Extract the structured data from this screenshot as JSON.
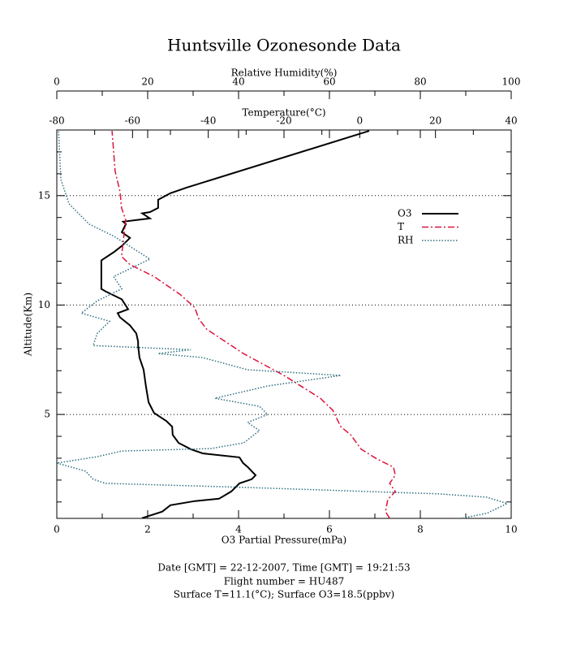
{
  "chart_data": {
    "type": "line",
    "title": "Huntsville Ozonesonde Data",
    "xlabel": "O3 Partial Pressure(mPa)",
    "x2label": "Temperature(°C)",
    "x3label": "Relative Humidity(%)",
    "ylabel": "Altitude(Km)",
    "xlim": [
      0,
      10
    ],
    "xticks": [
      0,
      2,
      4,
      6,
      8,
      10
    ],
    "xminorticks": [
      1,
      3,
      5,
      7,
      9
    ],
    "x2lim": [
      -80,
      40
    ],
    "x2ticks": [
      -80,
      -60,
      -40,
      -20,
      0,
      20,
      40
    ],
    "x2minorticks": [
      -70,
      -50,
      -30,
      -10,
      10,
      30
    ],
    "x3lim": [
      0,
      100
    ],
    "x3ticks": [
      0,
      20,
      40,
      60,
      80,
      100
    ],
    "x3minorticks": [
      10,
      30,
      50,
      70,
      90
    ],
    "ylim": [
      0.25,
      18
    ],
    "yticks": [
      5,
      10,
      15
    ],
    "yminorticks": [
      1,
      2,
      3,
      4,
      6,
      7,
      8,
      9,
      11,
      12,
      13,
      14,
      16,
      17
    ],
    "grid": true,
    "legend": "upper right",
    "series": [
      {
        "name": "O3",
        "color": "#000000",
        "style": "solid",
        "axis": "x",
        "values": [
          1.875,
          2.32,
          2.5,
          3.04,
          3.57,
          3.84,
          4.02,
          4.29,
          4.375,
          4.2,
          4.1,
          4.02,
          3.21,
          2.95,
          2.68,
          2.55,
          2.54,
          2.41,
          2.14,
          2.02,
          1.96,
          1.91,
          1.82,
          1.79,
          1.79,
          1.75,
          1.61,
          1.39,
          1.34,
          1.57,
          1.43,
          1.07,
          0.98,
          0.98,
          1.25,
          1.43,
          1.61,
          1.43,
          1.52,
          1.46,
          2.05,
          1.88,
          2.05,
          2.23,
          2.23,
          2.5,
          2.86,
          6.875
        ],
        "altitude": [
          0.26,
          0.56,
          0.85,
          1.04,
          1.15,
          1.48,
          1.85,
          2.04,
          2.22,
          2.6,
          2.78,
          3.04,
          3.22,
          3.41,
          3.7,
          4.07,
          4.44,
          4.7,
          5.07,
          5.56,
          6.3,
          7.04,
          7.6,
          8.15,
          8.33,
          8.7,
          9.07,
          9.44,
          9.63,
          9.81,
          10.26,
          10.63,
          10.74,
          12.04,
          12.41,
          12.7,
          13.07,
          13.33,
          13.7,
          13.81,
          13.96,
          14.19,
          14.25,
          14.44,
          14.81,
          15.11,
          15.37,
          17.96
        ]
      },
      {
        "name": "T",
        "color": "#dc143c",
        "style": "dashdot",
        "axis": "x2",
        "values": [
          7.86,
          6.8,
          7.4,
          9.4,
          7.9,
          9.4,
          8.9,
          4.6,
          0.4,
          -2.4,
          -5,
          -7.1,
          -10.4,
          -20,
          -30.7,
          -40.4,
          -42.5,
          -43.6,
          -47.4,
          -54.3,
          -60.7,
          -62.9,
          -62.4,
          -61.8,
          -62.9,
          -63.3,
          -64.6,
          -65.4
        ],
        "altitude": [
          0.26,
          0.56,
          1.11,
          1.48,
          1.85,
          2.22,
          2.59,
          2.96,
          3.41,
          4.07,
          4.44,
          5.19,
          5.74,
          6.78,
          7.78,
          8.89,
          9.37,
          9.89,
          10.48,
          11.3,
          11.85,
          12.22,
          12.96,
          13.89,
          14.44,
          15.19,
          16.11,
          17.96
        ]
      },
      {
        "name": "RH",
        "color": "#2f6f7f",
        "style": "dotted",
        "axis": "x3",
        "values": [
          89.3,
          94.6,
          99.1,
          94.6,
          83.9,
          41,
          10.7,
          8,
          6.3,
          0,
          8.9,
          14.3,
          33.9,
          41.1,
          44.6,
          42,
          46.4,
          44.6,
          34.8,
          46.4,
          62.5,
          42,
          32.1,
          22.3,
          29.5,
          8,
          8.9,
          11.6,
          5.4,
          8.9,
          14.3,
          12.5,
          20.5,
          12.5,
          7.1,
          2.7,
          0.9,
          0.4
        ],
        "altitude": [
          0.26,
          0.48,
          0.93,
          1.22,
          1.37,
          1.67,
          1.85,
          2.04,
          2.41,
          2.78,
          3.07,
          3.33,
          3.44,
          3.7,
          4.26,
          4.63,
          5.0,
          5.37,
          5.74,
          6.3,
          6.78,
          7.04,
          7.6,
          7.78,
          7.96,
          8.15,
          8.7,
          9.26,
          9.63,
          10.19,
          10.74,
          11.3,
          12.1,
          13.15,
          13.7,
          14.63,
          15.74,
          17.96
        ]
      }
    ],
    "footer": [
      "Date [GMT] = 22-12-2007,  Time [GMT] = 19:21:53",
      "Flight number = HU487",
      "Surface T=11.1(°C); Surface O3=18.5(ppbv)"
    ]
  }
}
